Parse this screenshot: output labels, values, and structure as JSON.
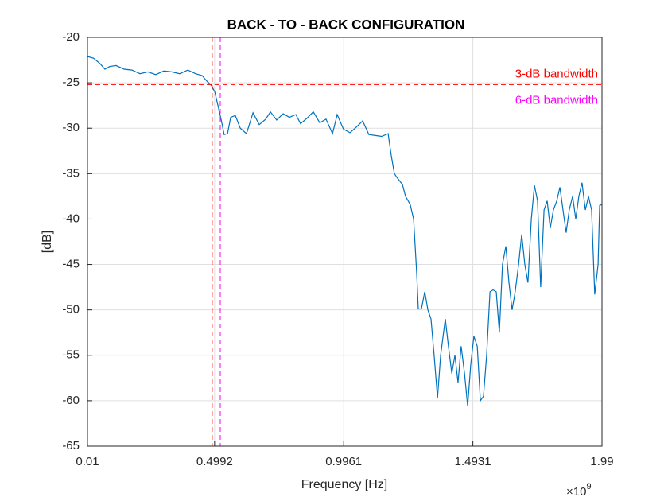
{
  "chart_data": {
    "type": "line",
    "title": "BACK - TO - BACK CONFIGURATION",
    "x_label": "Frequency [Hz]",
    "y_label": "[dB]",
    "x_multiplier": {
      "base": "×10",
      "exponent": "9"
    },
    "xlim": [
      0.01,
      1.99
    ],
    "xticks": [
      0.01,
      0.4992,
      0.9961,
      1.4931,
      1.99
    ],
    "ylim": [
      -65,
      -20
    ],
    "yticks": [
      -65,
      -60,
      -55,
      -50,
      -45,
      -40,
      -35,
      -30,
      -25,
      -20
    ],
    "grid": true,
    "hlines": [
      {
        "name": "3-dB bandwidth",
        "value": -25.2,
        "color": "#ff0000"
      },
      {
        "name": "6-dB bandwidth",
        "value": -28.1,
        "color": "#ff00ff"
      }
    ],
    "vlines": [
      {
        "value": 0.49,
        "color": "#ff0000"
      },
      {
        "value": 0.521,
        "color": "#ff00ff"
      }
    ],
    "series": [
      {
        "color": "#0072bd",
        "x": [
          0.01,
          0.034,
          0.059,
          0.077,
          0.096,
          0.12,
          0.151,
          0.181,
          0.212,
          0.242,
          0.273,
          0.304,
          0.334,
          0.365,
          0.396,
          0.426,
          0.451,
          0.469,
          0.487,
          0.5,
          0.512,
          0.524,
          0.536,
          0.549,
          0.561,
          0.579,
          0.598,
          0.622,
          0.647,
          0.671,
          0.696,
          0.714,
          0.738,
          0.763,
          0.787,
          0.812,
          0.83,
          0.855,
          0.879,
          0.904,
          0.928,
          0.953,
          0.971,
          0.995,
          1.02,
          1.044,
          1.069,
          1.093,
          1.118,
          1.142,
          1.167,
          1.179,
          1.191,
          1.203,
          1.222,
          1.234,
          1.252,
          1.265,
          1.277,
          1.283,
          1.295,
          1.308,
          1.32,
          1.332,
          1.344,
          1.357,
          1.369,
          1.387,
          1.399,
          1.412,
          1.424,
          1.436,
          1.448,
          1.461,
          1.473,
          1.485,
          1.497,
          1.51,
          1.522,
          1.534,
          1.546,
          1.559,
          1.571,
          1.583,
          1.595,
          1.607,
          1.62,
          1.632,
          1.644,
          1.656,
          1.669,
          1.681,
          1.693,
          1.705,
          1.718,
          1.73,
          1.742,
          1.754,
          1.767,
          1.779,
          1.791,
          1.803,
          1.816,
          1.828,
          1.84,
          1.852,
          1.864,
          1.877,
          1.889,
          1.901,
          1.913,
          1.926,
          1.938,
          1.95,
          1.962,
          1.975,
          1.981,
          1.99
        ],
        "values": [
          -22.1,
          -22.3,
          -22.9,
          -23.5,
          -23.2,
          -23.1,
          -23.5,
          -23.6,
          -24.0,
          -23.8,
          -24.1,
          -23.7,
          -23.8,
          -24.0,
          -23.6,
          -24.0,
          -24.2,
          -24.8,
          -25.3,
          -26.0,
          -27.5,
          -29.0,
          -30.7,
          -30.6,
          -28.8,
          -28.6,
          -30.0,
          -30.6,
          -28.3,
          -29.6,
          -29.0,
          -28.2,
          -29.1,
          -28.4,
          -28.8,
          -28.5,
          -29.5,
          -28.9,
          -28.2,
          -29.4,
          -29.0,
          -30.6,
          -28.5,
          -30.1,
          -30.5,
          -29.9,
          -29.2,
          -30.7,
          -30.8,
          -30.9,
          -30.6,
          -33.0,
          -35.0,
          -35.5,
          -36.2,
          -37.5,
          -38.4,
          -40.0,
          -46.0,
          -49.9,
          -49.9,
          -48.0,
          -50.0,
          -51.0,
          -55.0,
          -59.7,
          -55.0,
          -51.0,
          -54.0,
          -57.0,
          -55.0,
          -58.0,
          -54.0,
          -57.0,
          -60.6,
          -56.0,
          -52.9,
          -54.0,
          -60.0,
          -59.5,
          -55.0,
          -48.0,
          -47.8,
          -48.0,
          -52.5,
          -45.0,
          -43.0,
          -47.0,
          -50.0,
          -48.0,
          -45.0,
          -41.7,
          -45.0,
          -47.0,
          -40.0,
          -36.3,
          -38.0,
          -47.5,
          -39.0,
          -38.0,
          -41.0,
          -39.0,
          -38.0,
          -36.5,
          -39.0,
          -41.5,
          -39.0,
          -37.5,
          -40.0,
          -37.5,
          -36.0,
          -39.0,
          -37.5,
          -39.0,
          -48.3,
          -45.0,
          -38.5,
          -38.4
        ]
      }
    ]
  }
}
